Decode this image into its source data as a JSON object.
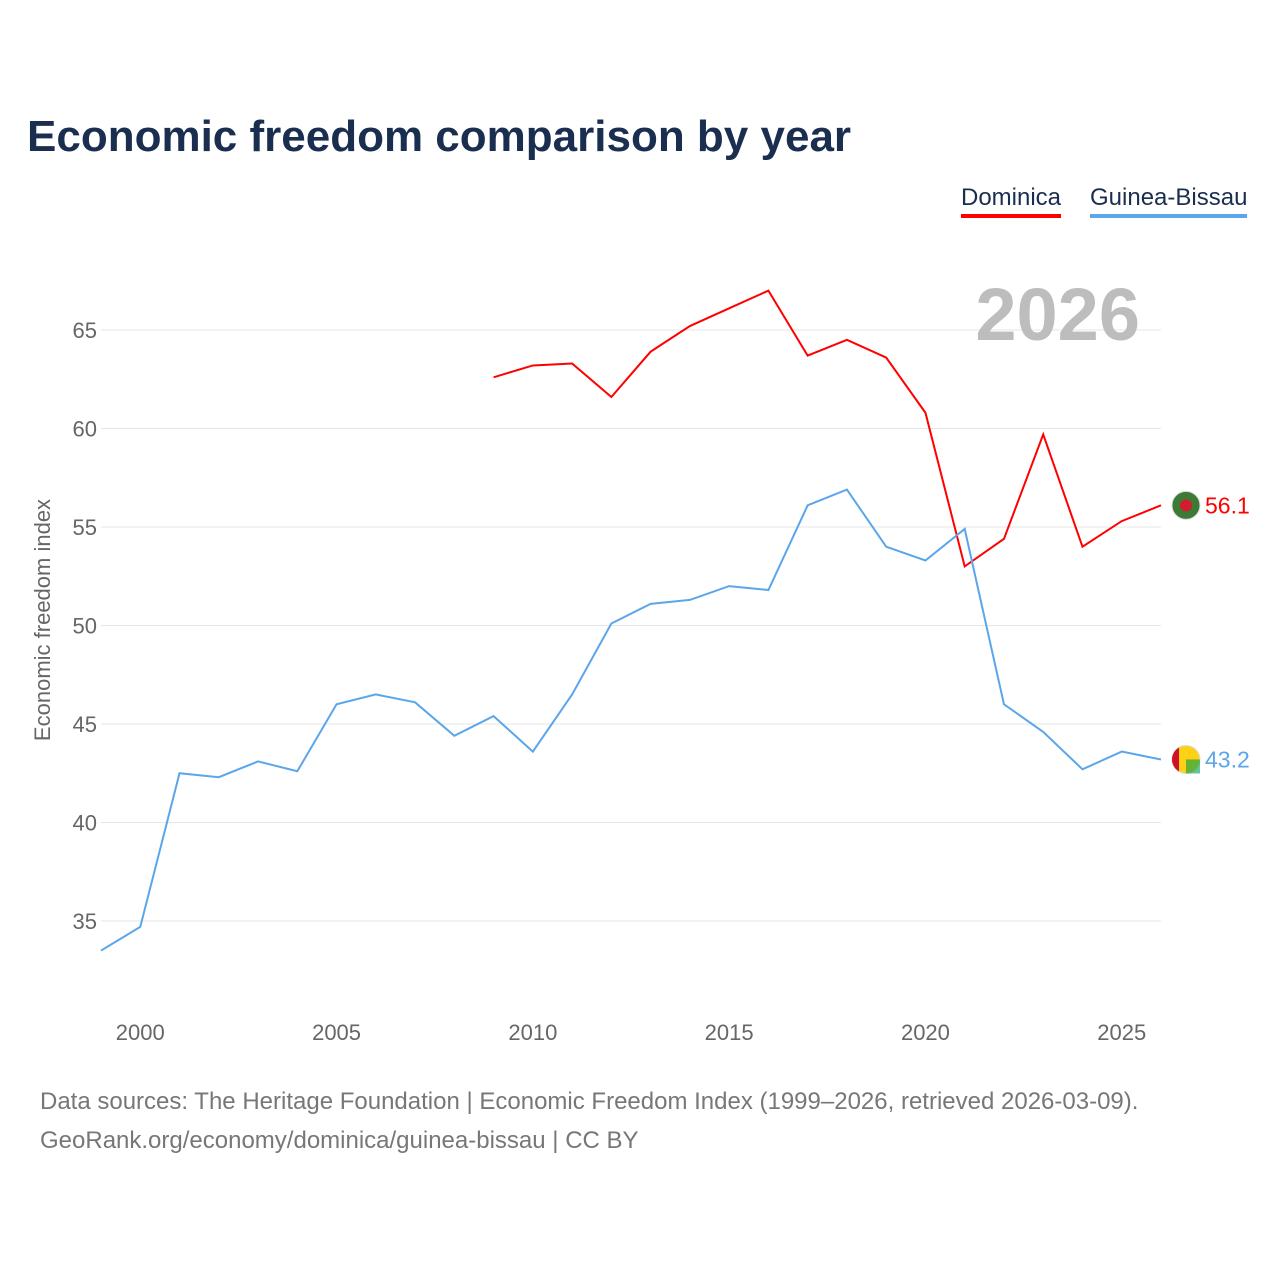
{
  "chart_data": {
    "type": "line",
    "title": "Economic freedom comparison by year",
    "ylabel": "Economic freedom index",
    "xlabel": "",
    "xlim": [
      1999,
      2026
    ],
    "ylim": [
      31.5,
      69
    ],
    "x_ticks": [
      2000,
      2005,
      2010,
      2015,
      2020,
      2025
    ],
    "y_ticks": [
      35,
      40,
      45,
      50,
      55,
      60,
      65
    ],
    "grid": true,
    "legend_placement": "top-right",
    "year_watermark": "2026",
    "series": [
      {
        "name": "Dominica",
        "color": "#ff0000",
        "end_label": "56.1",
        "x": [
          2009,
          2010,
          2011,
          2012,
          2013,
          2014,
          2015,
          2016,
          2017,
          2018,
          2019,
          2020,
          2021,
          2022,
          2023,
          2024,
          2025,
          2026
        ],
        "values": [
          62.6,
          63.2,
          63.3,
          61.6,
          63.9,
          65.2,
          66.1,
          67.0,
          63.7,
          64.5,
          63.6,
          60.8,
          53.0,
          54.4,
          59.7,
          54.0,
          55.3,
          56.1
        ]
      },
      {
        "name": "Guinea-Bissau",
        "color": "#5ba6ea",
        "end_label": "43.2",
        "x": [
          1999,
          2000,
          2001,
          2002,
          2003,
          2004,
          2005,
          2006,
          2007,
          2008,
          2009,
          2010,
          2011,
          2012,
          2013,
          2014,
          2015,
          2016,
          2017,
          2018,
          2019,
          2020,
          2021,
          2022,
          2023,
          2024,
          2025,
          2026
        ],
        "values": [
          33.5,
          34.7,
          42.5,
          42.3,
          43.1,
          42.6,
          46.0,
          46.5,
          46.1,
          44.4,
          45.4,
          43.6,
          46.5,
          50.1,
          51.1,
          51.3,
          52.0,
          51.8,
          56.1,
          56.9,
          54.0,
          53.3,
          54.9,
          46.0,
          44.6,
          42.7,
          43.6,
          43.2
        ]
      }
    ]
  },
  "footer": {
    "line1": "Data sources: The Heritage Foundation | Economic Freedom Index (1999–2026, retrieved 2026-03-09).",
    "line2": "GeoRank.org/economy/dominica/guinea-bissau | CC BY"
  }
}
